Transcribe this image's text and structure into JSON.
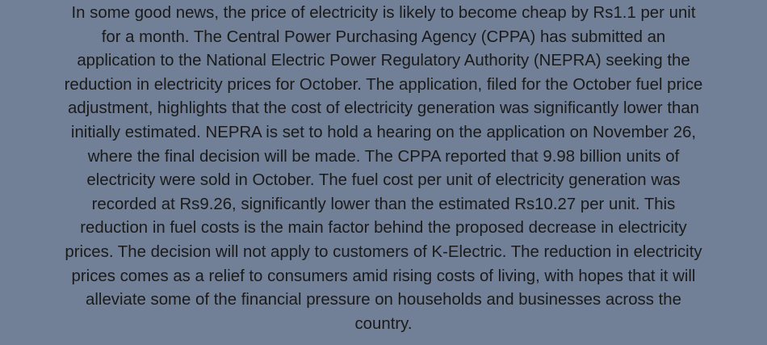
{
  "article": {
    "lines": [
      "In some good news, the price of electricity is likely to become cheap by Rs1.1 per unit",
      "for a month. The Central Power Purchasing Agency (CPPA) has submitted an",
      "application to the National Electric Power Regulatory Authority (NEPRA) seeking the",
      "reduction in electricity prices for October. The application, filed for the October fuel price",
      "adjustment, highlights that the cost of electricity generation was significantly lower than",
      "initially estimated. NEPRA is set to hold a hearing on the application on November 26,",
      "where the final decision will be made. The CPPA reported that 9.98 billion units of",
      "electricity were sold in October. The fuel cost per unit of electricity generation was",
      "recorded at Rs9.26, significantly lower than the estimated Rs10.27 per unit. This",
      "reduction in fuel costs is the main factor behind the proposed decrease in electricity",
      "prices. The decision will not apply to customers of K-Electric. The reduction in electricity",
      "prices comes as a relief to consumers amid rising costs of living, with hopes that it will",
      "alleviate some of the financial pressure on households and businesses across the",
      "country."
    ]
  }
}
